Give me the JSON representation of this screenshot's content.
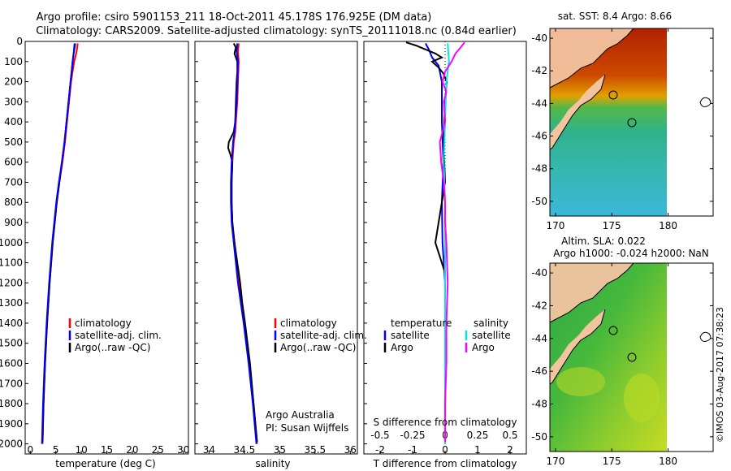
{
  "title": {
    "line1": "Argo profile: csiro 5901153_211 18-Oct-2011 45.178S 176.925E (DM data)",
    "line2": "Climatology: CARS2009. Satellite-adjusted climatology: synTS_20111018.nc (0.84d earlier)"
  },
  "colors": {
    "climatology": "#ff0000",
    "satellite": "#0000ff",
    "argo": "#000000",
    "sal_satellite": "#00e5e5",
    "sal_argo": "#ff00ff"
  },
  "chart_data": [
    {
      "type": "line",
      "id": "temperature",
      "title": "",
      "xlabel": "temperature (deg C)",
      "ylabel": "",
      "xlim": [
        -1,
        31
      ],
      "ylim": [
        2050,
        0
      ],
      "xticks": [
        0,
        5,
        10,
        15,
        20,
        25,
        30
      ],
      "yticks": [
        0,
        100,
        200,
        300,
        400,
        500,
        600,
        700,
        800,
        900,
        1000,
        1100,
        1200,
        1300,
        1400,
        1500,
        1600,
        1700,
        1800,
        1900,
        2000
      ],
      "series": [
        {
          "name": "climatology",
          "depth": [
            10,
            30,
            60,
            100,
            150,
            200,
            300,
            400,
            500,
            600,
            700,
            800,
            900,
            1000,
            1200,
            1400,
            1600,
            1800,
            2000
          ],
          "values": [
            9.3,
            9.2,
            9.0,
            8.6,
            8.3,
            8.0,
            7.6,
            7.2,
            6.8,
            6.3,
            5.7,
            5.2,
            4.8,
            4.4,
            3.8,
            3.3,
            2.9,
            2.6,
            2.4
          ]
        },
        {
          "name": "satellite-adj. clim.",
          "depth": [
            10,
            30,
            60,
            100,
            150,
            200,
            300,
            400,
            500,
            600,
            700,
            800,
            900,
            1000,
            1200,
            1400,
            1600,
            1800,
            2000
          ],
          "values": [
            8.7,
            8.6,
            8.5,
            8.3,
            8.1,
            7.9,
            7.5,
            7.1,
            6.7,
            6.2,
            5.6,
            5.1,
            4.7,
            4.3,
            3.7,
            3.2,
            2.8,
            2.5,
            2.3
          ]
        },
        {
          "name": "Argo(..raw -QC)",
          "depth": [
            10,
            30,
            60,
            100,
            150,
            200,
            300,
            400,
            500,
            600,
            700,
            800,
            900,
            1000,
            1200,
            1400,
            1600,
            1800,
            1990
          ],
          "values": [
            8.8,
            8.7,
            8.5,
            8.3,
            8.1,
            7.9,
            7.5,
            7.1,
            6.7,
            6.2,
            5.7,
            5.2,
            4.8,
            4.4,
            3.8,
            3.3,
            2.9,
            2.6,
            2.4
          ]
        }
      ],
      "legend": {
        "placement": "lower-middle",
        "items": [
          "climatology",
          "satellite-adj. clim.",
          "Argo(..raw -QC)"
        ]
      }
    },
    {
      "type": "line",
      "id": "salinity",
      "title": "",
      "xlabel": "salinity",
      "ylabel": "",
      "xlim": [
        33.8,
        36.1
      ],
      "ylim": [
        2050,
        0
      ],
      "xticks": [
        34,
        34.5,
        35,
        35.5,
        36
      ],
      "series": [
        {
          "name": "climatology",
          "depth": [
            10,
            50,
            100,
            200,
            300,
            400,
            450,
            500,
            600,
            700,
            800,
            900,
            1000,
            1200,
            1400,
            1600,
            1800,
            2000
          ],
          "values": [
            34.42,
            34.41,
            34.42,
            34.41,
            34.4,
            34.38,
            34.37,
            34.35,
            34.33,
            34.32,
            34.32,
            34.33,
            34.36,
            34.42,
            34.5,
            34.57,
            34.63,
            34.68
          ]
        },
        {
          "name": "satellite-adj. clim.",
          "depth": [
            10,
            50,
            100,
            200,
            300,
            400,
            450,
            500,
            600,
            700,
            800,
            900,
            1000,
            1200,
            1400,
            1600,
            1800,
            2000
          ],
          "values": [
            34.4,
            34.39,
            34.41,
            34.4,
            34.39,
            34.37,
            34.36,
            34.34,
            34.32,
            34.31,
            34.31,
            34.32,
            34.35,
            34.41,
            34.49,
            34.56,
            34.62,
            34.67
          ]
        },
        {
          "name": "Argo(..raw -QC)",
          "depth": [
            10,
            30,
            60,
            100,
            150,
            200,
            300,
            400,
            450,
            500,
            530,
            560,
            600,
            700,
            800,
            900,
            1000,
            1100,
            1200,
            1300,
            1400,
            1600,
            1800,
            1990
          ],
          "values": [
            34.35,
            34.38,
            34.36,
            34.4,
            34.4,
            34.39,
            34.38,
            34.37,
            34.35,
            34.28,
            34.27,
            34.3,
            34.33,
            34.32,
            34.32,
            34.33,
            34.36,
            34.4,
            34.44,
            34.47,
            34.51,
            34.58,
            34.63,
            34.68
          ]
        }
      ],
      "legend": {
        "placement": "lower-middle",
        "items": [
          "climatology",
          "satellite-adj. clim.",
          "Argo(..raw -QC)"
        ]
      },
      "annotation": [
        "Argo Australia",
        "PI: Susan Wijffels"
      ]
    },
    {
      "type": "line",
      "id": "differences",
      "title": "",
      "xlabel_top": "S difference from climatology",
      "xlabel": "T difference from climatology",
      "xlim": [
        -2.5,
        2.5
      ],
      "ylim": [
        2050,
        0
      ],
      "xticks_T": [
        -2,
        -1,
        0,
        1,
        2
      ],
      "xticks_S": [
        -0.5,
        -0.25,
        0,
        0.25,
        0.5
      ],
      "series": [
        {
          "name": "temperature satellite",
          "depth": [
            10,
            40,
            80,
            120,
            200,
            400,
            600,
            800,
            1000,
            1200,
            1600,
            2000
          ],
          "values": [
            -0.6,
            -0.5,
            -0.4,
            -0.2,
            -0.1,
            -0.1,
            -0.05,
            -0.1,
            -0.08,
            0,
            0,
            0
          ]
        },
        {
          "name": "temperature Argo",
          "depth": [
            5,
            20,
            40,
            60,
            80,
            100,
            130,
            160,
            200,
            300,
            500,
            700,
            900,
            1000,
            1050,
            1100,
            1150,
            1400,
            2000
          ],
          "values": [
            -1.2,
            -0.9,
            -0.6,
            -0.3,
            -0.1,
            -0.4,
            -0.2,
            -0.05,
            0.05,
            0.0,
            -0.05,
            0.0,
            -0.2,
            -0.3,
            -0.2,
            -0.1,
            0.0,
            0.0,
            0.0
          ]
        },
        {
          "name": "salinity satellite",
          "depth": [
            10,
            100,
            200,
            400,
            600,
            800,
            1000,
            1200,
            1500,
            1800,
            2000
          ],
          "values": [
            0.02,
            0.03,
            0.01,
            0.0,
            -0.01,
            0.0,
            0.0,
            0.0,
            0.0,
            0.0,
            0.0
          ]
        },
        {
          "name": "salinity Argo",
          "depth": [
            5,
            30,
            60,
            100,
            150,
            200,
            250,
            300,
            400,
            500,
            600,
            700,
            800,
            900,
            1000,
            1200,
            1400,
            1600,
            1800,
            1990
          ],
          "values": [
            0.15,
            0.12,
            0.08,
            0.05,
            0.0,
            -0.02,
            0.01,
            -0.01,
            0.0,
            -0.04,
            -0.03,
            -0.01,
            0.0,
            0.0,
            0.01,
            0.02,
            0.01,
            0.01,
            0.0,
            0.0
          ]
        }
      ],
      "legend": {
        "placement": "lower-middle",
        "temperature": {
          "heading": "temperature",
          "items": [
            "satellite",
            "Argo"
          ]
        },
        "salinity": {
          "heading": "salinity",
          "items": [
            "satellite",
            "Argo"
          ]
        }
      }
    },
    {
      "type": "heatmap",
      "id": "sst-map",
      "title": "sat. SST: 8.4 Argo: 8.66",
      "xticks": [
        170,
        175,
        180
      ],
      "yticks": [
        -40,
        -42,
        -44,
        -46,
        -48,
        -50
      ],
      "xlim": [
        169.5,
        184
      ],
      "ylim": [
        -50.9,
        -39.4
      ]
    },
    {
      "type": "heatmap",
      "id": "sla-map",
      "title_line1": "Altim. SLA: 0.022",
      "title_line2": "Argo h1000: -0.024 h2000: NaN",
      "xticks": [
        170,
        175,
        180
      ],
      "yticks": [
        -40,
        -42,
        -44,
        -46,
        -48,
        -50
      ],
      "xlim": [
        169.5,
        184
      ],
      "ylim": [
        -50.9,
        -39.4
      ]
    }
  ],
  "footer_stamp": "©IMOS 03-Aug-2017 07:38:23"
}
